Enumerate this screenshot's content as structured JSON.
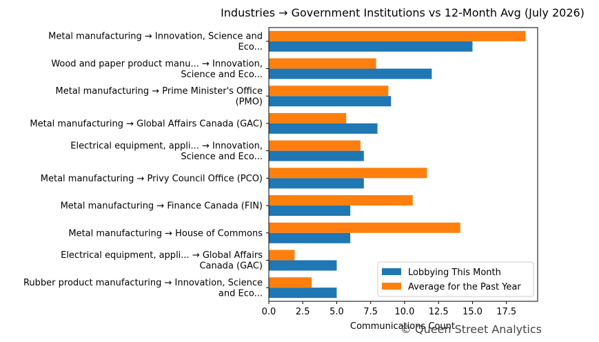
{
  "chart_data": {
    "type": "bar",
    "orientation": "horizontal",
    "title": "Industries → Government Institutions vs 12-Month Avg (July 2026)",
    "xlabel": "Communications Count",
    "ylabel": "",
    "xlim": [
      0,
      19.8
    ],
    "xticks": [
      "0.0",
      "2.5",
      "5.0",
      "7.5",
      "10.0",
      "12.5",
      "15.0",
      "17.5"
    ],
    "xtick_values": [
      0,
      2.5,
      5,
      7.5,
      10,
      12.5,
      15,
      17.5
    ],
    "grid": false,
    "legend_position": "lower right",
    "categories": [
      [
        "Metal manufacturing → Innovation, Science and",
        "Eco..."
      ],
      [
        "Wood and paper product manu... → Innovation,",
        "Science and Eco..."
      ],
      [
        "Metal manufacturing → Prime Minister's Office",
        "(PMO)"
      ],
      [
        "Metal manufacturing → Global Affairs Canada (GAC)"
      ],
      [
        "Electrical equipment, appli... → Innovation,",
        "Science and Eco..."
      ],
      [
        "Metal manufacturing → Privy Council Office (PCO)"
      ],
      [
        "Metal manufacturing → Finance Canada (FIN)"
      ],
      [
        "Metal manufacturing → House of Commons"
      ],
      [
        "Electrical equipment, appli... → Global Affairs",
        "Canada (GAC)"
      ],
      [
        "Rubber product manufacturing → Innovation, Science",
        "and Eco..."
      ]
    ],
    "series": [
      {
        "name": "Lobbying This Month",
        "color": "#1f77b4",
        "values": [
          15,
          12,
          9,
          8,
          7,
          7,
          6,
          6,
          5,
          5
        ]
      },
      {
        "name": "Average for the Past Year",
        "color": "#ff7f0e",
        "values": [
          18.9,
          7.9,
          8.8,
          5.7,
          6.75,
          11.65,
          10.6,
          14.1,
          1.9,
          3.15
        ]
      }
    ]
  },
  "watermark": "© Queen Street Analytics"
}
